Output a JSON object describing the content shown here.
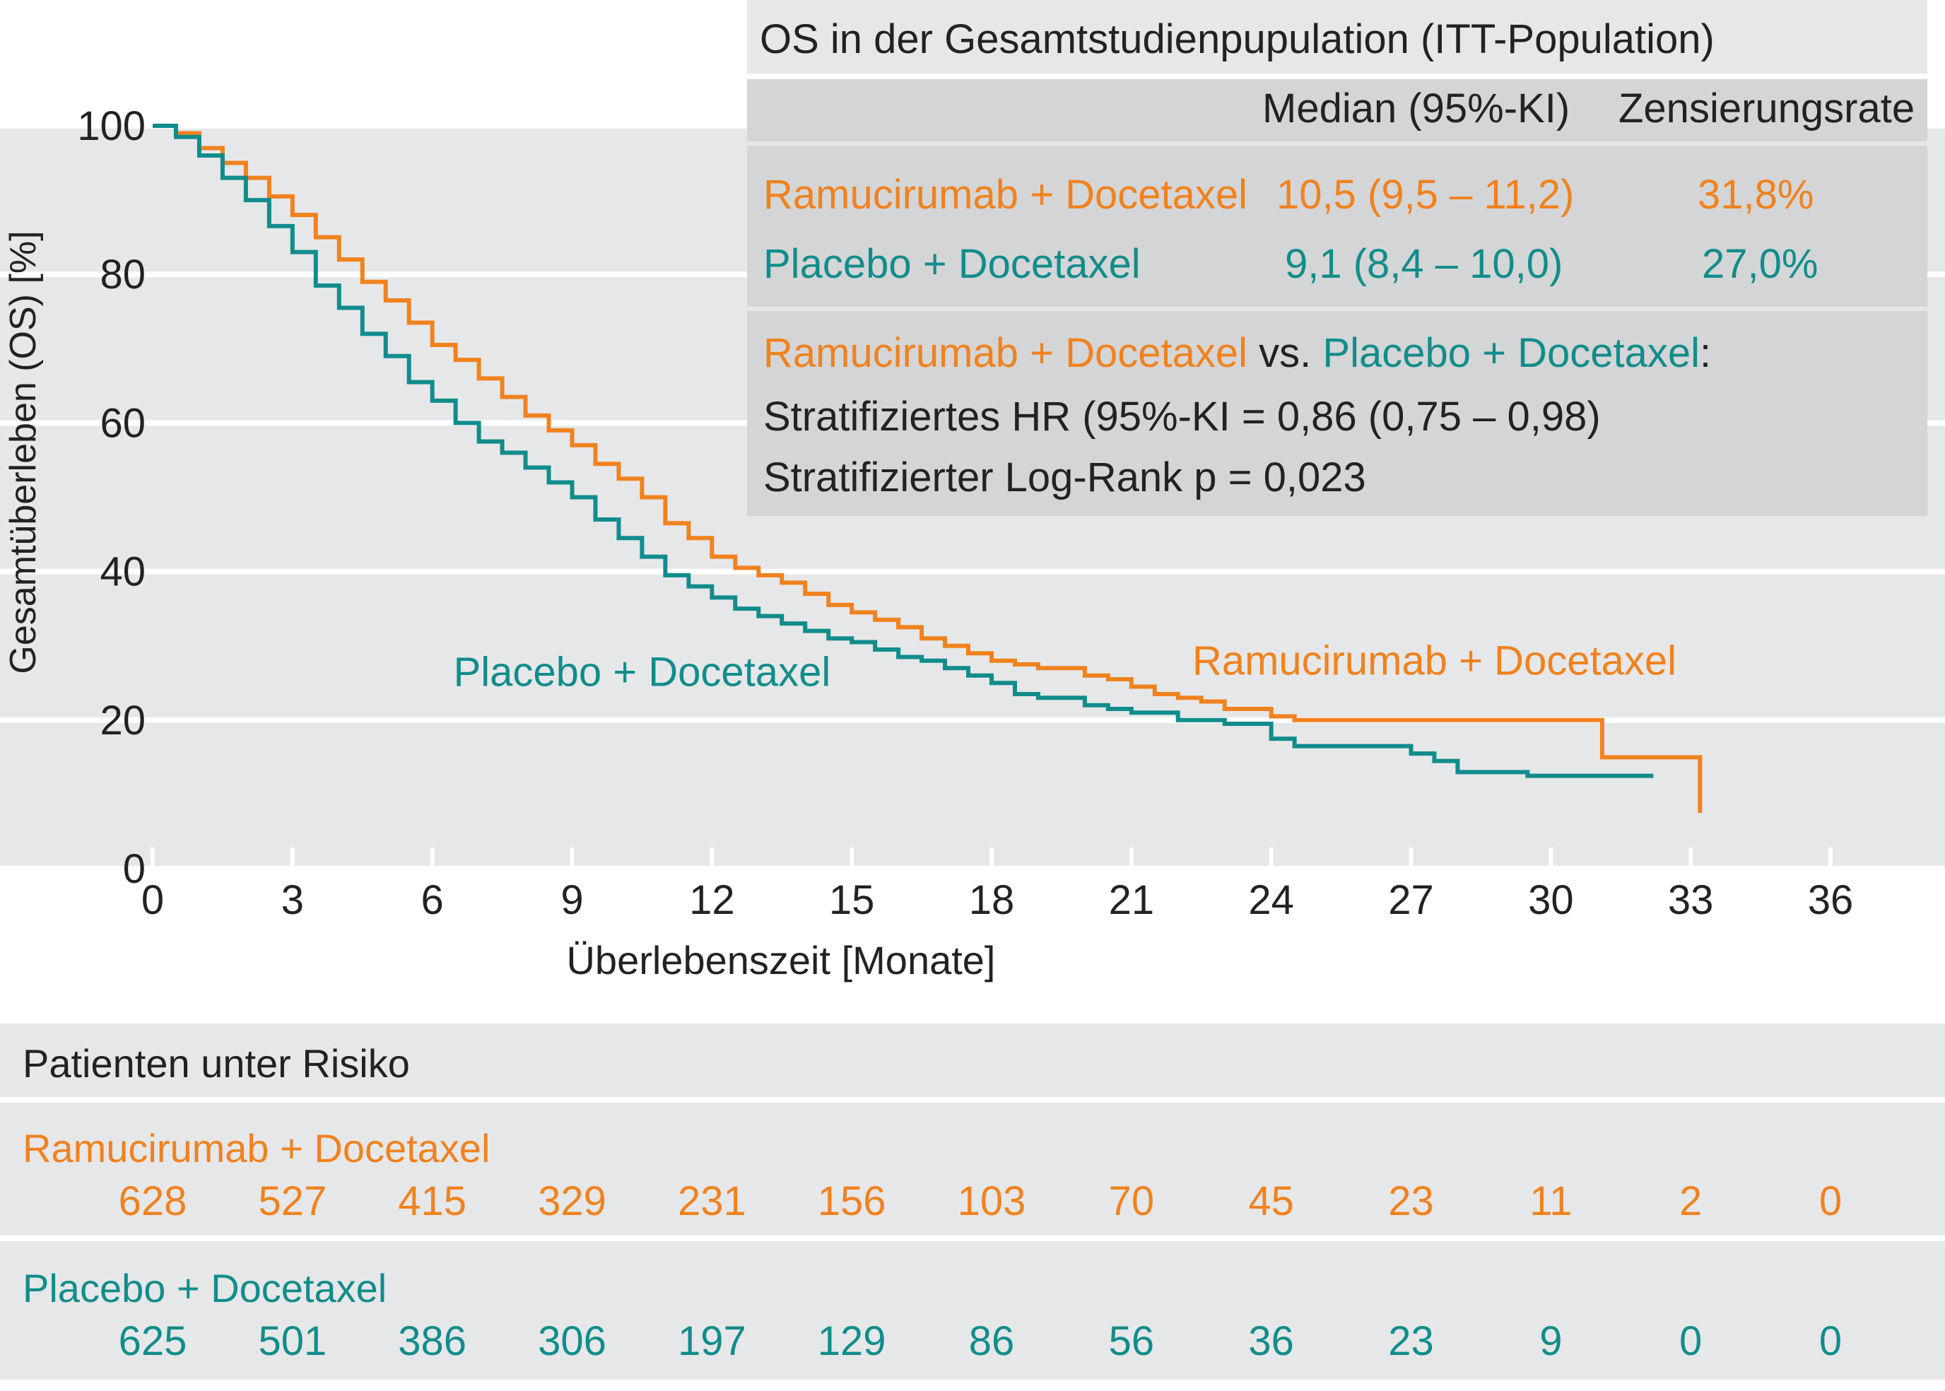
{
  "colors": {
    "ramucirumab": "#f0821e",
    "placebo": "#118c8c",
    "band": "#e6e7e8",
    "table_bg": "#d4d5d6"
  },
  "table": {
    "title": "OS in der Gesamtstudienpupulation (ITT-Population)",
    "col_median": "Median (95%-KI)",
    "col_censor": "Zensierungsrate",
    "rows": [
      {
        "name": "Ramucirumab + Docetaxel",
        "median": "10,5 (9,5 – 11,2)",
        "censor": "31,8%"
      },
      {
        "name": "Placebo + Docetaxel",
        "median": "9,1 (8,4 – 10,0)",
        "censor": "27,0%"
      }
    ],
    "comparison": {
      "arm1": "Ramucirumab + Docetaxel",
      "vs": "vs.",
      "arm2": "Placebo + Docetaxel",
      "colon": ":",
      "hr": "Stratifiziertes HR (95%-KI = 0,86 (0,75 – 0,98)",
      "logrank": "Stratifizierter Log-Rank p = 0,023"
    }
  },
  "chart_data": {
    "type": "line",
    "ylabel": "Gesamtüberleben (OS) [%]",
    "xlabel": "Überlebenszeit [Monate]",
    "xlim": [
      0,
      36
    ],
    "ylim": [
      0,
      100
    ],
    "x_ticks": [
      "0",
      "3",
      "6",
      "9",
      "12",
      "15",
      "18",
      "21",
      "24",
      "27",
      "30",
      "33",
      "36"
    ],
    "y_ticks": [
      "0",
      "20",
      "40",
      "60",
      "80",
      "100"
    ],
    "grid": "horizontal bands",
    "series": [
      {
        "name": "Ramucirumab + Docetaxel",
        "step": true,
        "points": [
          [
            0,
            100
          ],
          [
            0.5,
            99
          ],
          [
            1,
            97
          ],
          [
            1.5,
            95
          ],
          [
            2,
            93
          ],
          [
            2.5,
            90.5
          ],
          [
            3,
            88
          ],
          [
            3.5,
            85
          ],
          [
            4,
            82
          ],
          [
            4.5,
            79
          ],
          [
            5,
            76.5
          ],
          [
            5.5,
            73.5
          ],
          [
            6,
            70.5
          ],
          [
            6.5,
            68.5
          ],
          [
            7,
            66
          ],
          [
            7.5,
            63.5
          ],
          [
            8,
            61
          ],
          [
            8.5,
            59
          ],
          [
            9,
            57
          ],
          [
            9.5,
            54.5
          ],
          [
            10,
            52.5
          ],
          [
            10.5,
            50
          ],
          [
            11,
            46.5
          ],
          [
            11.5,
            44.5
          ],
          [
            12,
            42
          ],
          [
            12.5,
            40.5
          ],
          [
            13,
            39.5
          ],
          [
            13.5,
            38.5
          ],
          [
            14,
            37
          ],
          [
            14.5,
            35.5
          ],
          [
            15,
            34.5
          ],
          [
            15.5,
            33.5
          ],
          [
            16,
            32.5
          ],
          [
            16.5,
            31
          ],
          [
            17,
            30
          ],
          [
            17.5,
            29
          ],
          [
            18,
            28
          ],
          [
            18.5,
            27.5
          ],
          [
            19,
            27
          ],
          [
            19.5,
            27
          ],
          [
            20,
            26
          ],
          [
            20.5,
            25.5
          ],
          [
            21,
            24.5
          ],
          [
            21.5,
            23.5
          ],
          [
            22,
            23
          ],
          [
            22.5,
            22.5
          ],
          [
            23,
            21.5
          ],
          [
            24,
            20.5
          ],
          [
            24.5,
            20
          ],
          [
            31,
            20
          ],
          [
            31.1,
            15
          ],
          [
            33.2,
            15
          ],
          [
            33.2,
            7.5
          ]
        ]
      },
      {
        "name": "Placebo + Docetaxel",
        "step": true,
        "points": [
          [
            0,
            100
          ],
          [
            0.5,
            98.5
          ],
          [
            1,
            96
          ],
          [
            1.5,
            93
          ],
          [
            2,
            90
          ],
          [
            2.5,
            86.5
          ],
          [
            3,
            83
          ],
          [
            3.5,
            78.5
          ],
          [
            4,
            75.5
          ],
          [
            4.5,
            72
          ],
          [
            5,
            69
          ],
          [
            5.5,
            65.5
          ],
          [
            6,
            63
          ],
          [
            6.5,
            60
          ],
          [
            7,
            57.5
          ],
          [
            7.5,
            56
          ],
          [
            8,
            54
          ],
          [
            8.5,
            52
          ],
          [
            9,
            50
          ],
          [
            9.5,
            47
          ],
          [
            10,
            44.5
          ],
          [
            10.5,
            42
          ],
          [
            11,
            39.5
          ],
          [
            11.5,
            38
          ],
          [
            12,
            36.5
          ],
          [
            12.5,
            35
          ],
          [
            13,
            34
          ],
          [
            13.5,
            33
          ],
          [
            14,
            32
          ],
          [
            14.5,
            31
          ],
          [
            15,
            30.5
          ],
          [
            15.5,
            29.5
          ],
          [
            16,
            28.5
          ],
          [
            16.5,
            28
          ],
          [
            17,
            27
          ],
          [
            17.5,
            26
          ],
          [
            18,
            25
          ],
          [
            18.5,
            23.5
          ],
          [
            19,
            23
          ],
          [
            19.5,
            23
          ],
          [
            20,
            22
          ],
          [
            20.5,
            21.5
          ],
          [
            21,
            21
          ],
          [
            22,
            20
          ],
          [
            23,
            19.5
          ],
          [
            24,
            17.5
          ],
          [
            24.5,
            16.5
          ],
          [
            27,
            15.5
          ],
          [
            27.5,
            14.5
          ],
          [
            28,
            13
          ],
          [
            29.5,
            12.5
          ],
          [
            32.2,
            12.5
          ]
        ]
      }
    ],
    "annotations": [
      {
        "text": "Placebo + Docetaxel",
        "series": "Placebo + Docetaxel",
        "x": 10.5,
        "y": 26.5
      },
      {
        "text": "Ramucirumab + Docetaxel",
        "series": "Ramucirumab + Docetaxel",
        "x": 27.5,
        "y": 28
      }
    ]
  },
  "risk_table": {
    "title": "Patienten unter Risiko",
    "rows": [
      {
        "name": "Ramucirumab + Docetaxel",
        "values": [
          "628",
          "527",
          "415",
          "329",
          "231",
          "156",
          "103",
          "70",
          "45",
          "23",
          "11",
          "2",
          "0"
        ]
      },
      {
        "name": "Placebo + Docetaxel",
        "values": [
          "625",
          "501",
          "386",
          "306",
          "197",
          "129",
          "86",
          "56",
          "36",
          "23",
          "9",
          "0",
          "0"
        ]
      }
    ]
  }
}
